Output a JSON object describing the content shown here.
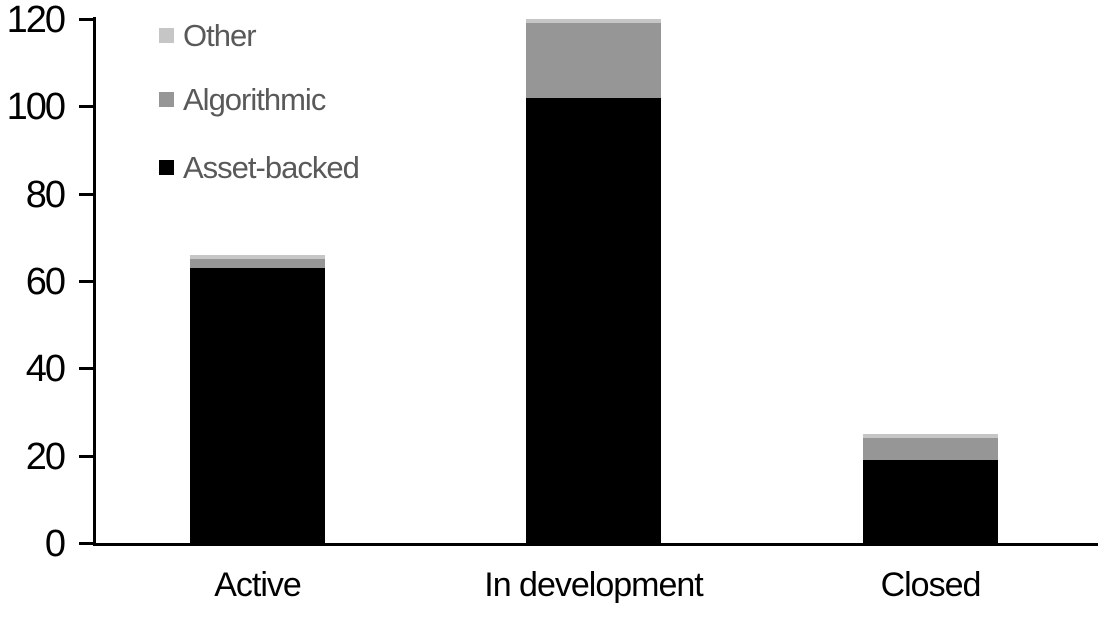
{
  "chart_data": {
    "type": "bar",
    "stacked": true,
    "title": "",
    "xlabel": "",
    "ylabel": "",
    "categories": [
      "Active",
      "In development",
      "Closed"
    ],
    "series": [
      {
        "name": "Other",
        "color": "#c6c6c6",
        "values": [
          1,
          1,
          1
        ]
      },
      {
        "name": "Algorithmic",
        "color": "#969696",
        "values": [
          2,
          17,
          5
        ]
      },
      {
        "name": "Asset-backed",
        "color": "#000000",
        "values": [
          63,
          102,
          19
        ]
      }
    ],
    "stack_bottom_to_top": [
      "Asset-backed",
      "Algorithmic",
      "Other"
    ],
    "totals": [
      66,
      120,
      25
    ],
    "ylim": [
      0,
      120
    ],
    "yticks": [
      0,
      20,
      40,
      60,
      80,
      100,
      120
    ],
    "grid": false,
    "legend_position": "top-left",
    "colors": {
      "axis": "#000000",
      "tick_label": "#000000",
      "category_label": "#000000",
      "legend_text": "#595959",
      "background": "#ffffff"
    }
  }
}
